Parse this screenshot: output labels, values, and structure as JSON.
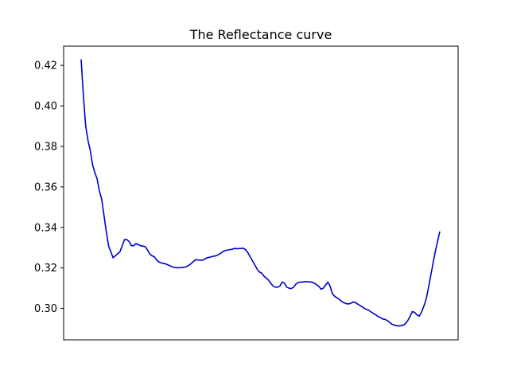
{
  "chart_data": {
    "type": "line",
    "title": "The Reflectance curve",
    "xlabel": "",
    "ylabel": "",
    "x_ticks_visible": false,
    "grid": false,
    "ylim": [
      0.2845,
      0.4295
    ],
    "yticks": [
      0.3,
      0.32,
      0.34,
      0.36,
      0.38,
      0.4,
      0.42
    ],
    "ytick_labels": [
      "0.30",
      "0.32",
      "0.34",
      "0.36",
      "0.38",
      "0.40",
      "0.42"
    ],
    "series": [
      {
        "color": "#0000cc",
        "values": [
          0.423,
          0.405,
          0.39,
          0.383,
          0.378,
          0.371,
          0.367,
          0.364,
          0.358,
          0.354,
          0.346,
          0.338,
          0.331,
          0.328,
          0.325,
          0.326,
          0.327,
          0.328,
          0.331,
          0.334,
          0.334,
          0.333,
          0.331,
          0.331,
          0.332,
          0.3315,
          0.331,
          0.3308,
          0.3305,
          0.329,
          0.327,
          0.326,
          0.3255,
          0.324,
          0.323,
          0.3225,
          0.3222,
          0.322,
          0.3215,
          0.321,
          0.3205,
          0.3202,
          0.3201,
          0.3201,
          0.3202,
          0.3203,
          0.3206,
          0.3212,
          0.322,
          0.323,
          0.324,
          0.324,
          0.3238,
          0.3238,
          0.3242,
          0.325,
          0.3252,
          0.3255,
          0.3258,
          0.326,
          0.3265,
          0.3272,
          0.328,
          0.3285,
          0.3288,
          0.329,
          0.3292,
          0.3296,
          0.3295,
          0.3295,
          0.3296,
          0.3297,
          0.329,
          0.3275,
          0.3255,
          0.3235,
          0.3215,
          0.3195,
          0.318,
          0.3175,
          0.316,
          0.315,
          0.314,
          0.3125,
          0.311,
          0.3105,
          0.3105,
          0.311,
          0.313,
          0.3125,
          0.3105,
          0.31,
          0.3098,
          0.3105,
          0.312,
          0.3128,
          0.313,
          0.313,
          0.3132,
          0.3132,
          0.3131,
          0.313,
          0.3125,
          0.3118,
          0.311,
          0.3095,
          0.31,
          0.3115,
          0.313,
          0.311,
          0.3072,
          0.306,
          0.3052,
          0.3045,
          0.3035,
          0.3028,
          0.3024,
          0.3022,
          0.3025,
          0.3032,
          0.303,
          0.3022,
          0.3015,
          0.3008,
          0.3,
          0.2995,
          0.299,
          0.2982,
          0.2975,
          0.2968,
          0.296,
          0.2955,
          0.2948,
          0.2946,
          0.294,
          0.2932,
          0.2922,
          0.2918,
          0.2915,
          0.2913,
          0.2915,
          0.2918,
          0.2925,
          0.294,
          0.2962,
          0.2985,
          0.298,
          0.2968,
          0.2962,
          0.2982,
          0.301,
          0.3045,
          0.31,
          0.316,
          0.322,
          0.328,
          0.333,
          0.338
        ]
      }
    ]
  }
}
